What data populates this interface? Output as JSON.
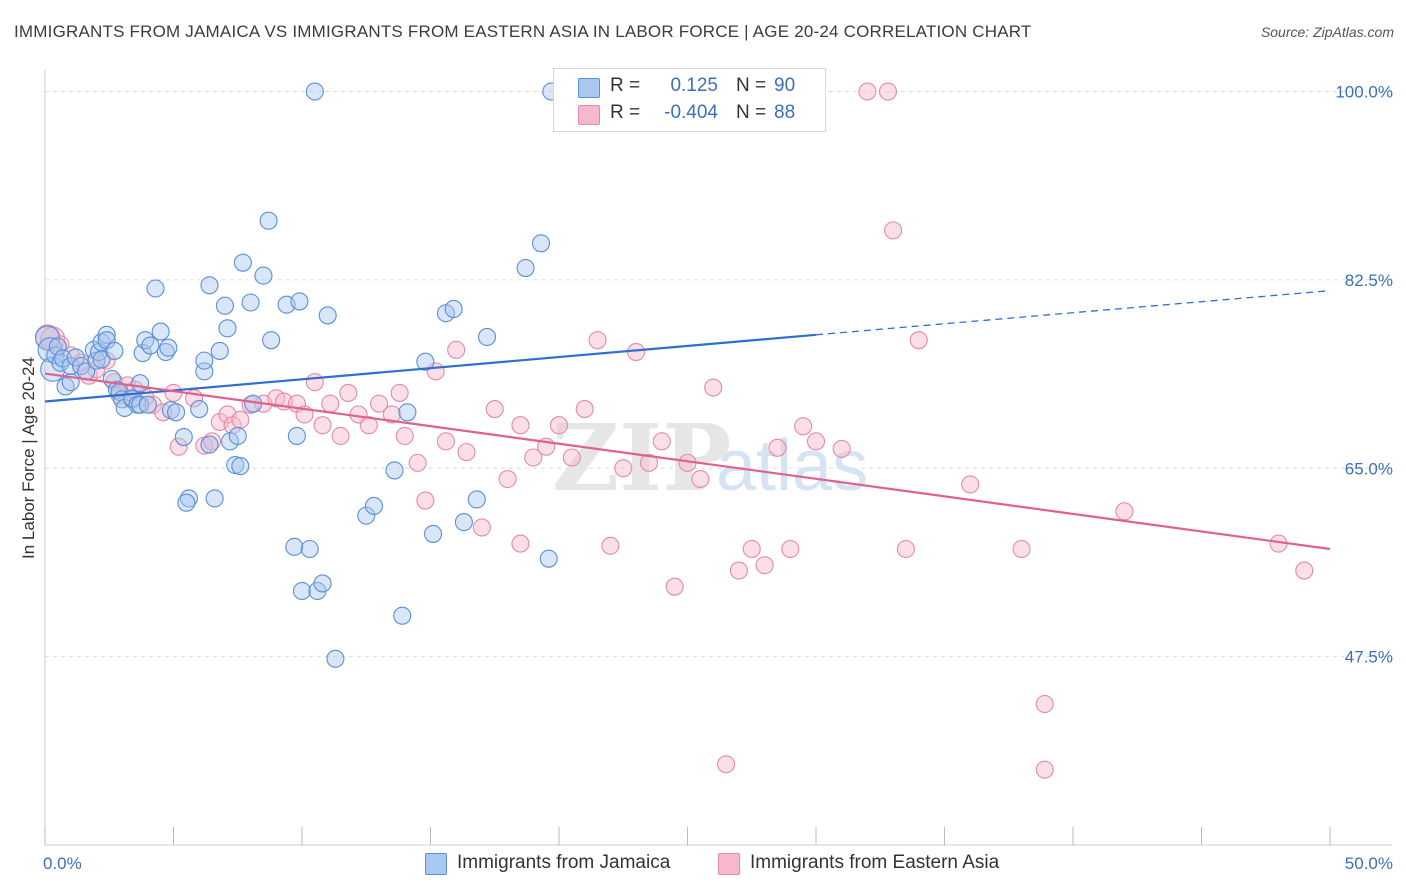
{
  "title": "IMMIGRANTS FROM JAMAICA VS IMMIGRANTS FROM EASTERN ASIA IN LABOR FORCE | AGE 20-24 CORRELATION CHART",
  "source": "Source: ZipAtlas.com",
  "watermark": {
    "zip": "ZIP",
    "atlas": "atlas"
  },
  "legend": {
    "r_label": "R =",
    "n_label": "N =",
    "rows": [
      {
        "r": "0.125",
        "n": "90"
      },
      {
        "r": "-0.404",
        "n": "88"
      }
    ]
  },
  "colors": {
    "jamaica_fill": "#a9c7ef",
    "jamaica_stroke": "#5b8fd6",
    "jamaica_line": "#2f6fcf",
    "easia_fill": "#f6b8cc",
    "easia_stroke": "#e58aa7",
    "easia_line": "#e0608e",
    "tick_label": "#3d6fb8",
    "grid": "#dddddd"
  },
  "chart_data": {
    "type": "scatter",
    "xlabel": "",
    "ylabel": "In Labor Force | Age 20-24",
    "xlim": [
      0,
      50
    ],
    "ylim": [
      30,
      102
    ],
    "x_tick_labels": [
      "0.0%",
      "50.0%"
    ],
    "y_ticks": [
      47.5,
      65.0,
      82.5,
      100.0
    ],
    "y_tick_labels": [
      "47.5%",
      "65.0%",
      "82.5%",
      "100.0%"
    ],
    "grid": "horizontal dashed",
    "legend_position": "top-center",
    "series": [
      {
        "name": "Immigrants from Jamaica",
        "r": 0.125,
        "n": 90,
        "trend": {
          "x": [
            0,
            30
          ],
          "y": [
            71.2,
            77.4
          ],
          "dashed_extension": {
            "x": [
              30,
              50
            ],
            "y": [
              77.4,
              81.5
            ]
          }
        },
        "points": [
          [
            0.1,
            77.1
          ],
          [
            0.2,
            76.0
          ],
          [
            0.3,
            74.2
          ],
          [
            0.4,
            75.5
          ],
          [
            0.5,
            76.3
          ],
          [
            0.6,
            74.8
          ],
          [
            0.7,
            75.2
          ],
          [
            0.8,
            72.6
          ],
          [
            1.0,
            73.0
          ],
          [
            1.0,
            74.5
          ],
          [
            1.2,
            75.3
          ],
          [
            1.4,
            74.5
          ],
          [
            1.6,
            74.0
          ],
          [
            1.9,
            76.0
          ],
          [
            2.0,
            75.0
          ],
          [
            2.1,
            75.8
          ],
          [
            2.2,
            76.7
          ],
          [
            2.2,
            75.1
          ],
          [
            2.4,
            77.4
          ],
          [
            2.4,
            76.9
          ],
          [
            2.6,
            73.3
          ],
          [
            2.7,
            75.9
          ],
          [
            2.8,
            72.3
          ],
          [
            2.9,
            72.1
          ],
          [
            3.0,
            71.4
          ],
          [
            3.1,
            70.6
          ],
          [
            3.4,
            71.4
          ],
          [
            3.4,
            71.5
          ],
          [
            3.6,
            70.9
          ],
          [
            3.7,
            72.9
          ],
          [
            3.7,
            70.9
          ],
          [
            3.8,
            75.7
          ],
          [
            3.9,
            76.9
          ],
          [
            4.0,
            70.9
          ],
          [
            4.1,
            76.4
          ],
          [
            4.5,
            77.7
          ],
          [
            4.7,
            75.8
          ],
          [
            4.8,
            76.2
          ],
          [
            4.9,
            70.4
          ],
          [
            5.1,
            70.2
          ],
          [
            5.4,
            67.9
          ],
          [
            5.6,
            62.2
          ],
          [
            6.0,
            70.5
          ],
          [
            6.2,
            74.0
          ],
          [
            6.2,
            75.0
          ],
          [
            6.4,
            67.2
          ],
          [
            6.4,
            82.0
          ],
          [
            6.6,
            62.2
          ],
          [
            6.8,
            75.9
          ],
          [
            7.0,
            80.1
          ],
          [
            7.1,
            78.0
          ],
          [
            7.2,
            67.5
          ],
          [
            7.4,
            65.3
          ],
          [
            7.5,
            68.0
          ],
          [
            7.6,
            65.2
          ],
          [
            7.7,
            84.1
          ],
          [
            8.0,
            80.4
          ],
          [
            8.1,
            71.0
          ],
          [
            8.5,
            82.9
          ],
          [
            8.7,
            88.0
          ],
          [
            8.8,
            76.9
          ],
          [
            9.4,
            80.2
          ],
          [
            9.7,
            57.7
          ],
          [
            9.8,
            68.0
          ],
          [
            9.9,
            80.5
          ],
          [
            10.0,
            53.6
          ],
          [
            10.3,
            57.5
          ],
          [
            10.5,
            100.0
          ],
          [
            10.6,
            53.6
          ],
          [
            10.8,
            54.3
          ],
          [
            11.0,
            79.2
          ],
          [
            11.3,
            47.3
          ],
          [
            12.5,
            60.6
          ],
          [
            12.8,
            61.5
          ],
          [
            13.6,
            64.8
          ],
          [
            13.9,
            51.3
          ],
          [
            14.1,
            70.2
          ],
          [
            14.8,
            74.9
          ],
          [
            15.1,
            58.9
          ],
          [
            15.6,
            79.4
          ],
          [
            15.9,
            79.8
          ],
          [
            16.3,
            60.0
          ],
          [
            16.8,
            62.1
          ],
          [
            17.2,
            77.2
          ],
          [
            18.7,
            83.6
          ],
          [
            19.3,
            85.9
          ],
          [
            19.6,
            56.6
          ],
          [
            19.7,
            100.0
          ],
          [
            5.5,
            61.8
          ],
          [
            4.3,
            81.7
          ]
        ]
      },
      {
        "name": "Immigrants from Eastern Asia",
        "r": -0.404,
        "n": 88,
        "trend": {
          "x": [
            0,
            50
          ],
          "y": [
            73.8,
            57.5
          ]
        },
        "points": [
          [
            0.1,
            77.2
          ],
          [
            0.3,
            77.0
          ],
          [
            0.6,
            76.5
          ],
          [
            1.0,
            75.5
          ],
          [
            1.4,
            74.8
          ],
          [
            1.7,
            73.6
          ],
          [
            2.0,
            74.2
          ],
          [
            2.4,
            75.0
          ],
          [
            2.7,
            73.0
          ],
          [
            2.9,
            71.8
          ],
          [
            3.2,
            72.7
          ],
          [
            3.5,
            72.3
          ],
          [
            3.9,
            71.6
          ],
          [
            4.2,
            70.9
          ],
          [
            4.6,
            70.2
          ],
          [
            5.0,
            72.0
          ],
          [
            5.2,
            67.0
          ],
          [
            5.8,
            71.5
          ],
          [
            6.2,
            67.1
          ],
          [
            6.5,
            67.5
          ],
          [
            6.8,
            69.3
          ],
          [
            7.1,
            70.0
          ],
          [
            7.3,
            69.0
          ],
          [
            7.6,
            69.5
          ],
          [
            8.0,
            70.9
          ],
          [
            8.5,
            71.0
          ],
          [
            9.0,
            71.5
          ],
          [
            9.3,
            71.2
          ],
          [
            9.8,
            71.0
          ],
          [
            10.1,
            70.0
          ],
          [
            10.5,
            73.0
          ],
          [
            10.8,
            69.0
          ],
          [
            11.1,
            71.0
          ],
          [
            11.5,
            68.0
          ],
          [
            11.8,
            72.0
          ],
          [
            12.2,
            70.0
          ],
          [
            12.6,
            69.0
          ],
          [
            13.0,
            71.0
          ],
          [
            13.5,
            70.0
          ],
          [
            13.8,
            72.0
          ],
          [
            14.0,
            68.0
          ],
          [
            14.5,
            65.5
          ],
          [
            14.8,
            62.0
          ],
          [
            15.2,
            74.0
          ],
          [
            15.6,
            67.5
          ],
          [
            16.0,
            76.0
          ],
          [
            16.4,
            66.5
          ],
          [
            17.0,
            59.5
          ],
          [
            17.5,
            70.5
          ],
          [
            18.0,
            64.0
          ],
          [
            18.5,
            69.0
          ],
          [
            19.0,
            66.0
          ],
          [
            19.5,
            67.0
          ],
          [
            20.0,
            69.0
          ],
          [
            20.5,
            66.0
          ],
          [
            21.0,
            70.5
          ],
          [
            21.5,
            76.9
          ],
          [
            22.0,
            57.8
          ],
          [
            22.5,
            65.0
          ],
          [
            23.0,
            75.8
          ],
          [
            23.5,
            65.5
          ],
          [
            24.0,
            67.5
          ],
          [
            24.5,
            54.0
          ],
          [
            25.0,
            65.5
          ],
          [
            25.5,
            64.0
          ],
          [
            26.0,
            72.5
          ],
          [
            26.5,
            37.5
          ],
          [
            27.0,
            55.5
          ],
          [
            27.5,
            57.5
          ],
          [
            28.0,
            56.0
          ],
          [
            28.5,
            66.9
          ],
          [
            29.0,
            57.5
          ],
          [
            29.5,
            68.9
          ],
          [
            30.0,
            67.5
          ],
          [
            31.0,
            66.8
          ],
          [
            32.0,
            100.0
          ],
          [
            32.8,
            100.0
          ],
          [
            33.0,
            87.1
          ],
          [
            33.5,
            57.5
          ],
          [
            34.0,
            76.9
          ],
          [
            36.0,
            63.5
          ],
          [
            38.0,
            57.5
          ],
          [
            38.9,
            43.1
          ],
          [
            38.9,
            37.0
          ],
          [
            42.0,
            61.0
          ],
          [
            48.0,
            58.0
          ],
          [
            49.0,
            55.5
          ],
          [
            18.5,
            58.0
          ]
        ]
      }
    ]
  }
}
